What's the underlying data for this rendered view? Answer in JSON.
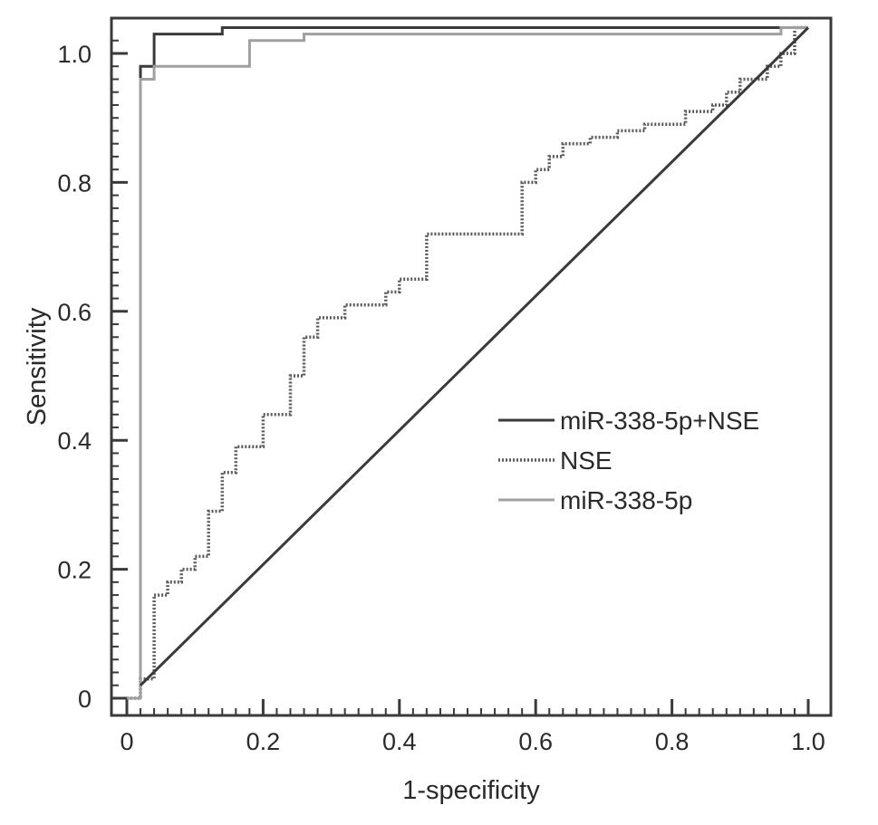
{
  "chart_data": {
    "type": "line",
    "title": "",
    "xlabel": "1-specificity",
    "ylabel": "Sensitivity",
    "xlim": [
      0,
      1.05
    ],
    "ylim": [
      0,
      1.05
    ],
    "x_ticks": [
      {
        "value": 0,
        "label": "0"
      },
      {
        "value": 0.2,
        "label": "0.2"
      },
      {
        "value": 0.4,
        "label": "0.4"
      },
      {
        "value": 0.6,
        "label": "0.6"
      },
      {
        "value": 0.8,
        "label": "0.8"
      },
      {
        "value": 1.0,
        "label": "1.0"
      }
    ],
    "y_ticks": [
      {
        "value": 0,
        "label": "0"
      },
      {
        "value": 0.2,
        "label": "0.2"
      },
      {
        "value": 0.4,
        "label": "0.4"
      },
      {
        "value": 0.6,
        "label": "0.6"
      },
      {
        "value": 0.8,
        "label": "0.8"
      },
      {
        "value": 1.0,
        "label": "1.0"
      }
    ],
    "grid": false,
    "legend_position": "right-middle",
    "series": [
      {
        "name": "miR-338-5p+NSE",
        "style": "solid",
        "color": "#3a3a3a",
        "points": [
          [
            0,
            0
          ],
          [
            0.02,
            0
          ],
          [
            0.02,
            0.98
          ],
          [
            0.04,
            0.98
          ],
          [
            0.04,
            1.03
          ],
          [
            0.14,
            1.03
          ],
          [
            0.14,
            1.04
          ],
          [
            1.0,
            1.04
          ]
        ]
      },
      {
        "name": "NSE",
        "style": "dotted",
        "color": "#5a5a5a",
        "points": [
          [
            0,
            0
          ],
          [
            0.02,
            0
          ],
          [
            0.02,
            0.03
          ],
          [
            0.04,
            0.03
          ],
          [
            0.04,
            0.16
          ],
          [
            0.06,
            0.16
          ],
          [
            0.06,
            0.18
          ],
          [
            0.08,
            0.18
          ],
          [
            0.08,
            0.2
          ],
          [
            0.1,
            0.2
          ],
          [
            0.1,
            0.22
          ],
          [
            0.12,
            0.22
          ],
          [
            0.12,
            0.29
          ],
          [
            0.14,
            0.29
          ],
          [
            0.14,
            0.35
          ],
          [
            0.16,
            0.35
          ],
          [
            0.16,
            0.39
          ],
          [
            0.2,
            0.39
          ],
          [
            0.2,
            0.44
          ],
          [
            0.24,
            0.44
          ],
          [
            0.24,
            0.5
          ],
          [
            0.26,
            0.5
          ],
          [
            0.26,
            0.56
          ],
          [
            0.28,
            0.56
          ],
          [
            0.28,
            0.59
          ],
          [
            0.32,
            0.59
          ],
          [
            0.32,
            0.61
          ],
          [
            0.38,
            0.61
          ],
          [
            0.38,
            0.63
          ],
          [
            0.4,
            0.63
          ],
          [
            0.4,
            0.65
          ],
          [
            0.44,
            0.65
          ],
          [
            0.44,
            0.72
          ],
          [
            0.58,
            0.72
          ],
          [
            0.58,
            0.8
          ],
          [
            0.6,
            0.8
          ],
          [
            0.6,
            0.82
          ],
          [
            0.62,
            0.82
          ],
          [
            0.62,
            0.84
          ],
          [
            0.64,
            0.84
          ],
          [
            0.64,
            0.86
          ],
          [
            0.68,
            0.86
          ],
          [
            0.68,
            0.87
          ],
          [
            0.72,
            0.87
          ],
          [
            0.72,
            0.88
          ],
          [
            0.76,
            0.88
          ],
          [
            0.76,
            0.89
          ],
          [
            0.82,
            0.89
          ],
          [
            0.82,
            0.91
          ],
          [
            0.86,
            0.91
          ],
          [
            0.86,
            0.92
          ],
          [
            0.88,
            0.92
          ],
          [
            0.88,
            0.94
          ],
          [
            0.9,
            0.94
          ],
          [
            0.9,
            0.96
          ],
          [
            0.94,
            0.96
          ],
          [
            0.94,
            0.98
          ],
          [
            0.96,
            0.98
          ],
          [
            0.96,
            1.0
          ],
          [
            0.98,
            1.0
          ],
          [
            0.98,
            1.04
          ],
          [
            1.0,
            1.04
          ]
        ]
      },
      {
        "name": "miR-338-5p",
        "style": "solid",
        "color": "#a0a0a0",
        "points": [
          [
            0,
            0
          ],
          [
            0.02,
            0
          ],
          [
            0.02,
            0.96
          ],
          [
            0.04,
            0.96
          ],
          [
            0.04,
            0.98
          ],
          [
            0.18,
            0.98
          ],
          [
            0.18,
            1.02
          ],
          [
            0.26,
            1.02
          ],
          [
            0.26,
            1.03
          ],
          [
            0.96,
            1.03
          ],
          [
            0.96,
            1.04
          ],
          [
            1.0,
            1.04
          ]
        ]
      },
      {
        "name": "",
        "style": "solid",
        "color": "#3a3a3a",
        "points": [
          [
            0.02,
            0.02
          ],
          [
            1.0,
            1.04
          ]
        ]
      }
    ]
  }
}
